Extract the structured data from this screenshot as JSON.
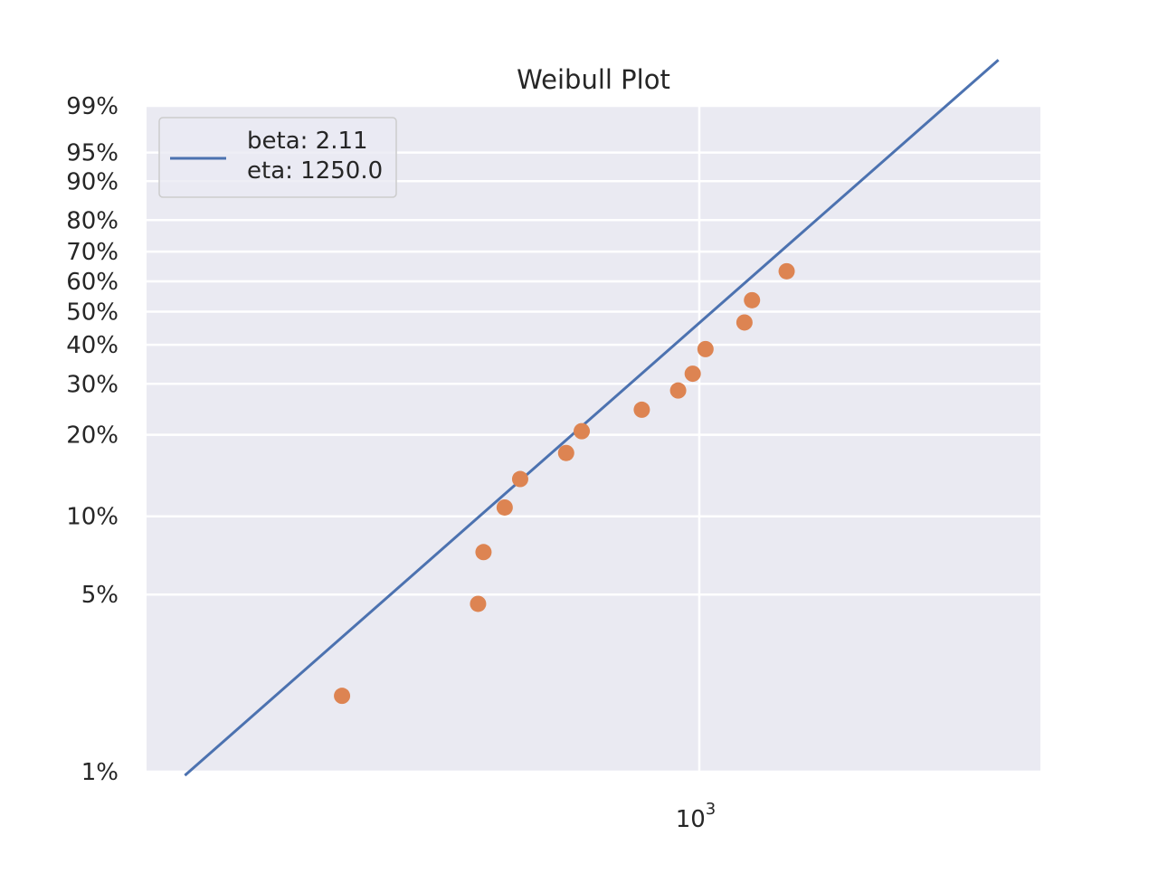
{
  "chart_data": {
    "type": "scatter",
    "title": "Weibull Plot",
    "xlabel": "",
    "ylabel": "",
    "x_scale": "log",
    "y_scale": "weibull-probability",
    "grid": true,
    "legend_position": "top-left",
    "x_tick_labels": [
      {
        "value": 1000,
        "base": "10",
        "exponent": "3"
      }
    ],
    "y_ticks": [
      {
        "value": 0.01,
        "label": "1%"
      },
      {
        "value": 0.05,
        "label": "5%"
      },
      {
        "value": 0.1,
        "label": "10%"
      },
      {
        "value": 0.2,
        "label": "20%"
      },
      {
        "value": 0.3,
        "label": "30%"
      },
      {
        "value": 0.4,
        "label": "40%"
      },
      {
        "value": 0.5,
        "label": "50%"
      },
      {
        "value": 0.6,
        "label": "60%"
      },
      {
        "value": 0.7,
        "label": "70%"
      },
      {
        "value": 0.8,
        "label": "80%"
      },
      {
        "value": 0.9,
        "label": "90%"
      },
      {
        "value": 0.95,
        "label": "95%"
      },
      {
        "value": 0.99,
        "label": "99%"
      }
    ],
    "fit_line": {
      "legend_lines": [
        "beta: 2.11",
        "eta: 1250.0"
      ],
      "beta": 2.11,
      "eta": 1250.0,
      "color": "#4C72B0",
      "x_start": 139,
      "x_end": 3150
    },
    "points": {
      "color": "#DD8452",
      "values": [
        {
          "x": 254,
          "y": 0.02
        },
        {
          "x": 428,
          "y": 0.046
        },
        {
          "x": 437,
          "y": 0.073
        },
        {
          "x": 474,
          "y": 0.108
        },
        {
          "x": 503,
          "y": 0.138
        },
        {
          "x": 600,
          "y": 0.172
        },
        {
          "x": 637,
          "y": 0.206
        },
        {
          "x": 802,
          "y": 0.245
        },
        {
          "x": 922,
          "y": 0.285
        },
        {
          "x": 975,
          "y": 0.324
        },
        {
          "x": 1024,
          "y": 0.388
        },
        {
          "x": 1189,
          "y": 0.466
        },
        {
          "x": 1224,
          "y": 0.537
        },
        {
          "x": 1398,
          "y": 0.634
        }
      ]
    }
  }
}
